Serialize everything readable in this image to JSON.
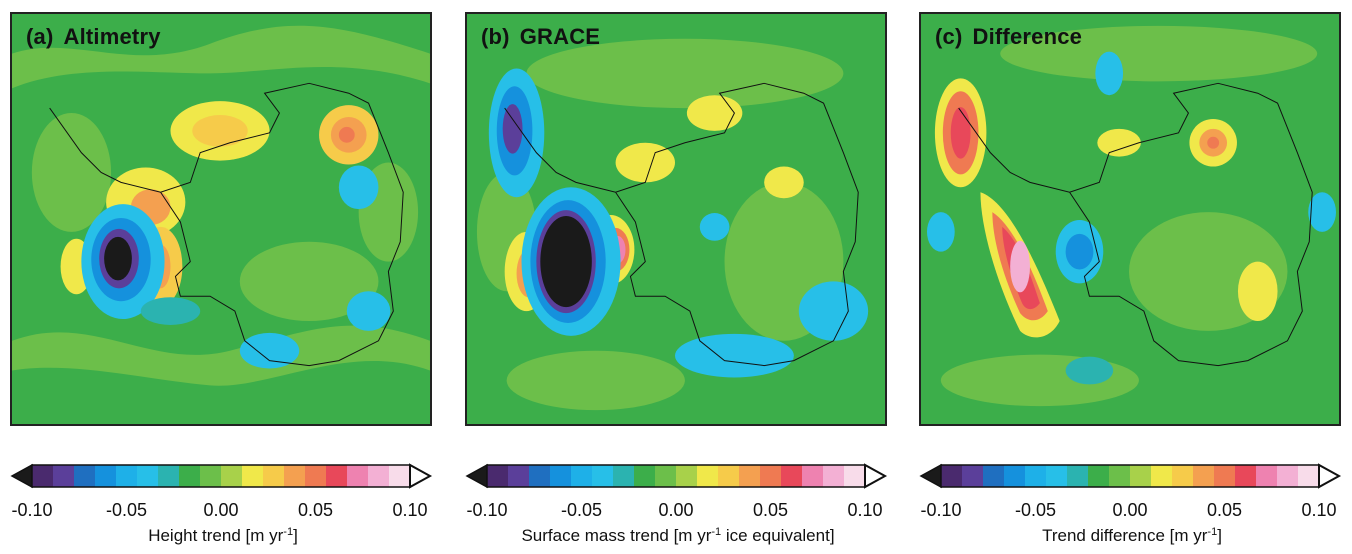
{
  "panels": [
    {
      "id": "a",
      "letter": "(a)",
      "title": "Altimetry",
      "colorbar": {
        "ticks": [
          "-0.10",
          "-0.05",
          "0.00",
          "0.05",
          "0.10"
        ],
        "label_pre": "Height trend [m yr",
        "label_sup": "-1",
        "label_post": "]"
      }
    },
    {
      "id": "b",
      "letter": "(b)",
      "title": "GRACE",
      "colorbar": {
        "ticks": [
          "-0.10",
          "-0.05",
          "0.00",
          "0.05",
          "0.10"
        ],
        "label_pre": "Surface mass trend [m yr",
        "label_sup": "-1",
        "label_post": " ice equivalent]"
      }
    },
    {
      "id": "c",
      "letter": "(c)",
      "title": "Difference",
      "colorbar": {
        "ticks": [
          "-0.10",
          "-0.05",
          "0.00",
          "0.05",
          "0.10"
        ],
        "label_pre": "Trend difference [m yr",
        "label_sup": "-1",
        "label_post": "]"
      }
    }
  ],
  "palette": [
    "#1a1a1a",
    "#4a2a6e",
    "#5b3f9a",
    "#1f6fc0",
    "#1591dd",
    "#1eb0e8",
    "#27bfe8",
    "#2bb3b0",
    "#3cae4a",
    "#6cbf4a",
    "#a8d14a",
    "#f0e84a",
    "#f6cb4a",
    "#f4a050",
    "#ef7a52",
    "#e8485a",
    "#ee82b0",
    "#f3b0d4",
    "#f8dcea",
    "#ffffff"
  ],
  "colors": {
    "background": "#3cae4a",
    "light_green": "#6cbf4a",
    "frame": "#222222",
    "coastline": "#111111"
  }
}
